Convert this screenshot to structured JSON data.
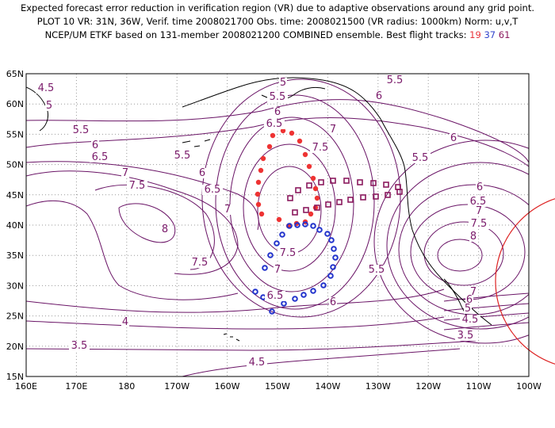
{
  "header": {
    "line1": "Expected forecast error reduction in verification region (VR) due to adaptive observations around any grid point.",
    "line2": "PLOT 10 VR: 31N, 36W, Verif. time 2008021700 Obs. time: 2008021500 (VR radius: 1000km) Norm: u,v,T",
    "line3_prefix": "NCEP/UM ETKF based on 131-member 2008021200 COMBINED ensemble.  Best flight tracks:",
    "track_red": "19",
    "track_blue": "37",
    "track_purple": "61"
  },
  "colors": {
    "contour": "#6a1466",
    "coast": "#000000",
    "grid": "#999999",
    "red_track": "#ee3333",
    "blue_track": "#2233cc",
    "purple_track": "#8b1a5e",
    "vr_circle": "#dd2222"
  },
  "axes": {
    "x_labels": [
      "160E",
      "170E",
      "180",
      "170W",
      "160W",
      "150W",
      "140W",
      "130W",
      "120W",
      "110W",
      "100W"
    ],
    "y_labels": [
      "15N",
      "20N",
      "25N",
      "30N",
      "35N",
      "40N",
      "45N",
      "50N",
      "55N",
      "60N",
      "65N"
    ]
  },
  "contour_labels": [
    "4.5",
    "5",
    "5.5",
    "6",
    "6.5",
    "7",
    "7.5",
    "8",
    "4",
    "3.5"
  ]
}
